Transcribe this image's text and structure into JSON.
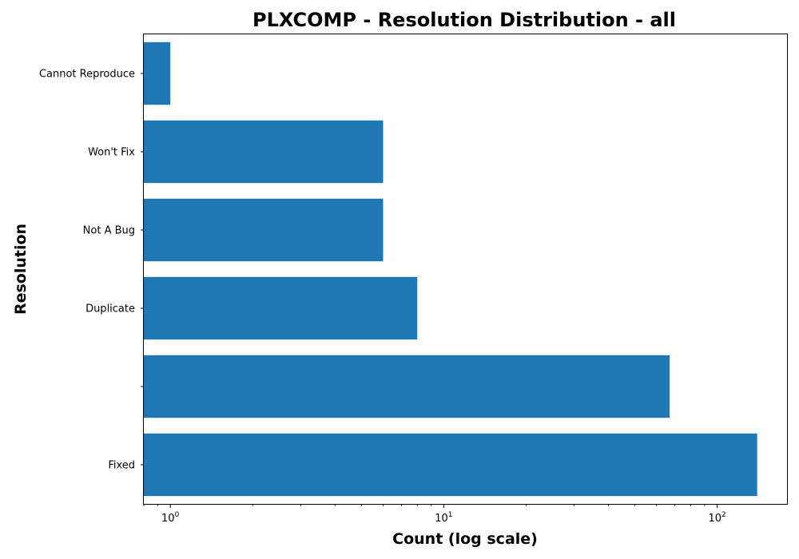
{
  "chart_data": {
    "type": "bar",
    "orientation": "horizontal",
    "title": "PLXCOMP - Resolution Distribution - all",
    "xlabel": "Count (log scale)",
    "ylabel": "Resolution",
    "x_scale": "log",
    "xlim": [
      0.8,
      180
    ],
    "categories": [
      "Fixed",
      "",
      "Duplicate",
      "Not A Bug",
      "Won't Fix",
      "Cannot Reproduce"
    ],
    "values": [
      140,
      67,
      8,
      6,
      6,
      1
    ],
    "x_ticks": [
      {
        "base": "10",
        "exp": "0"
      },
      {
        "base": "10",
        "exp": "1"
      },
      {
        "base": "10",
        "exp": "2"
      }
    ],
    "bar_color": "#1f77b4",
    "grid": false,
    "legend": "none"
  }
}
